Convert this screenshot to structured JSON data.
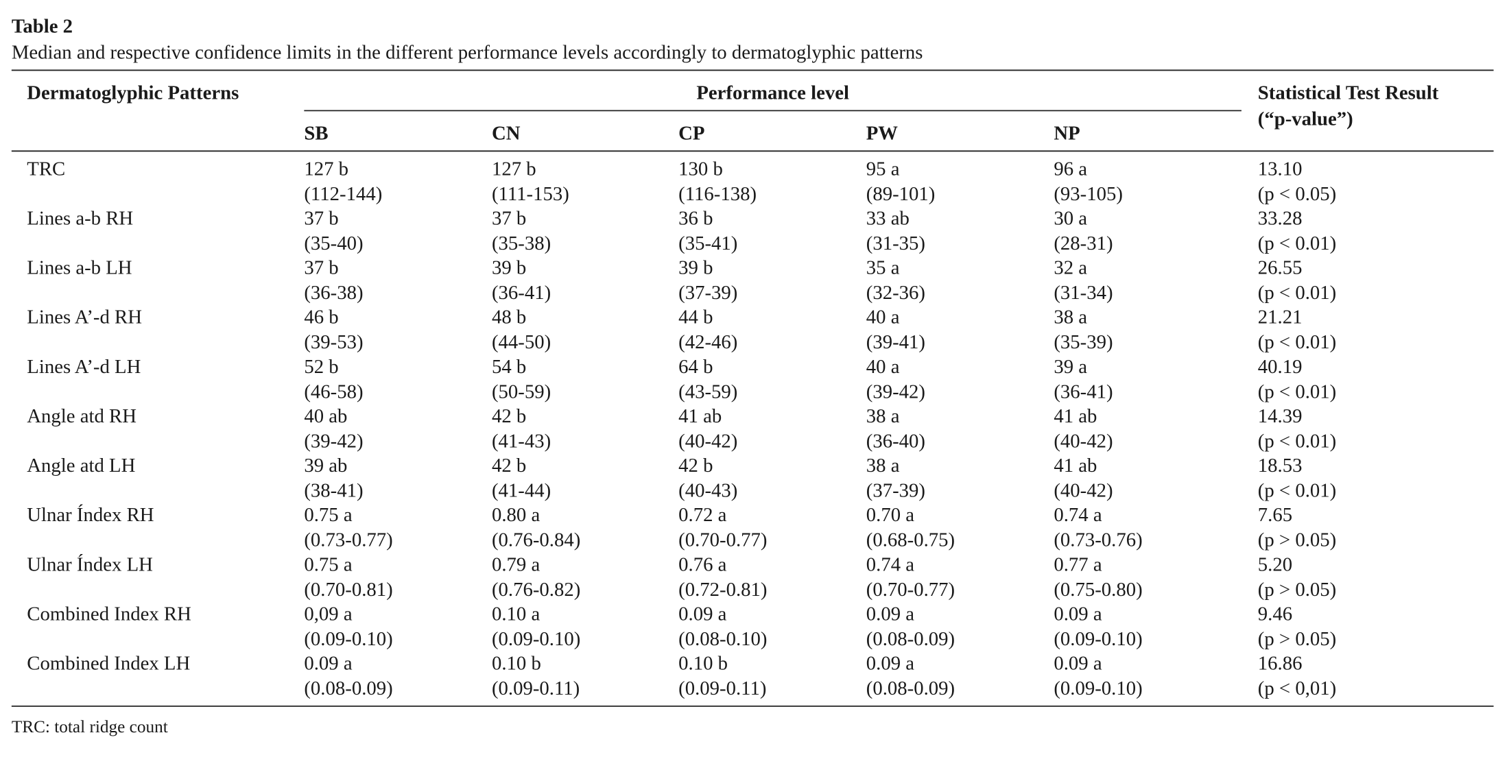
{
  "caption": {
    "label": "Table 2",
    "title": "Median and respective confidence limits in the different performance levels accordingly to dermatoglyphic patterns"
  },
  "table": {
    "header": {
      "first": "Dermatoglyphic Patterns",
      "group": "Performance level",
      "columns": [
        "SB",
        "CN",
        "CP",
        "PW",
        "NP"
      ],
      "last": [
        "Statistical Test Result",
        "(“p-value”)"
      ]
    },
    "rows": [
      [
        "TRC",
        [
          "127 b",
          "(112-144)"
        ],
        [
          "127 b",
          "(111-153)"
        ],
        [
          "130 b",
          "(116-138)"
        ],
        [
          "95 a",
          "(89-101)"
        ],
        [
          "96 a",
          "(93-105)"
        ],
        [
          "13.10",
          "(p < 0.05)"
        ]
      ],
      [
        "Lines a-b RH",
        [
          "37 b",
          "(35-40)"
        ],
        [
          "37 b",
          "(35-38)"
        ],
        [
          "36 b",
          "(35-41)"
        ],
        [
          "33 ab",
          "(31-35)"
        ],
        [
          "30 a",
          "(28-31)"
        ],
        [
          "33.28",
          "(p < 0.01)"
        ]
      ],
      [
        "Lines a-b LH",
        [
          "37 b",
          "(36-38)"
        ],
        [
          "39 b",
          "(36-41)"
        ],
        [
          "39 b",
          "(37-39)"
        ],
        [
          "35 a",
          "(32-36)"
        ],
        [
          "32 a",
          "(31-34)"
        ],
        [
          "26.55",
          "(p < 0.01)"
        ]
      ],
      [
        "Lines A’-d RH",
        [
          "46 b",
          "(39-53)"
        ],
        [
          "48 b",
          "(44-50)"
        ],
        [
          "44 b",
          "(42-46)"
        ],
        [
          "40 a",
          "(39-41)"
        ],
        [
          "38 a",
          "(35-39)"
        ],
        [
          "21.21",
          "(p < 0.01)"
        ]
      ],
      [
        "Lines A’-d LH",
        [
          "52 b",
          "(46-58)"
        ],
        [
          "54 b",
          "(50-59)"
        ],
        [
          "64 b",
          "(43-59)"
        ],
        [
          "40 a",
          "(39-42)"
        ],
        [
          "39 a",
          "(36-41)"
        ],
        [
          "40.19",
          "(p < 0.01)"
        ]
      ],
      [
        "Angle atd RH",
        [
          "40 ab",
          "(39-42)"
        ],
        [
          "42 b",
          "(41-43)"
        ],
        [
          "41 ab",
          "(40-42)"
        ],
        [
          "38 a",
          "(36-40)"
        ],
        [
          "41 ab",
          "(40-42)"
        ],
        [
          "14.39",
          "(p < 0.01)"
        ]
      ],
      [
        "Angle atd LH",
        [
          "39 ab",
          "(38-41)"
        ],
        [
          "42 b",
          "(41-44)"
        ],
        [
          "42 b",
          "(40-43)"
        ],
        [
          "38 a",
          "(37-39)"
        ],
        [
          "41 ab",
          "(40-42)"
        ],
        [
          "18.53",
          "(p < 0.01)"
        ]
      ],
      [
        "Ulnar Índex RH",
        [
          "0.75 a",
          "(0.73-0.77)"
        ],
        [
          "0.80 a",
          "(0.76-0.84)"
        ],
        [
          "0.72 a",
          "(0.70-0.77)"
        ],
        [
          "0.70 a",
          "(0.68-0.75)"
        ],
        [
          "0.74 a",
          "(0.73-0.76)"
        ],
        [
          "7.65",
          "(p > 0.05)"
        ]
      ],
      [
        "Ulnar Índex LH",
        [
          "0.75 a",
          "(0.70-0.81)"
        ],
        [
          "0.79 a",
          "(0.76-0.82)"
        ],
        [
          "0.76 a",
          "(0.72-0.81)"
        ],
        [
          "0.74 a",
          "(0.70-0.77)"
        ],
        [
          "0.77 a",
          "(0.75-0.80)"
        ],
        [
          "5.20",
          "(p > 0.05)"
        ]
      ],
      [
        "Combined Index RH",
        [
          "0,09 a",
          "(0.09-0.10)"
        ],
        [
          "0.10 a",
          "(0.09-0.10)"
        ],
        [
          "0.09 a",
          "(0.08-0.10)"
        ],
        [
          "0.09 a",
          "(0.08-0.09)"
        ],
        [
          "0.09 a",
          "(0.09-0.10)"
        ],
        [
          "9.46",
          "(p > 0.05)"
        ]
      ],
      [
        "Combined Index LH",
        [
          "0.09 a",
          "(0.08-0.09)"
        ],
        [
          "0.10 b",
          "(0.09-0.11)"
        ],
        [
          "0.10 b",
          "(0.09-0.11)"
        ],
        [
          "0.09 a",
          "(0.08-0.09)"
        ],
        [
          "0.09 a",
          "(0.09-0.10)"
        ],
        [
          "16.86",
          "(p < 0,01)"
        ]
      ]
    ]
  },
  "footnote": "TRC: total ridge count"
}
